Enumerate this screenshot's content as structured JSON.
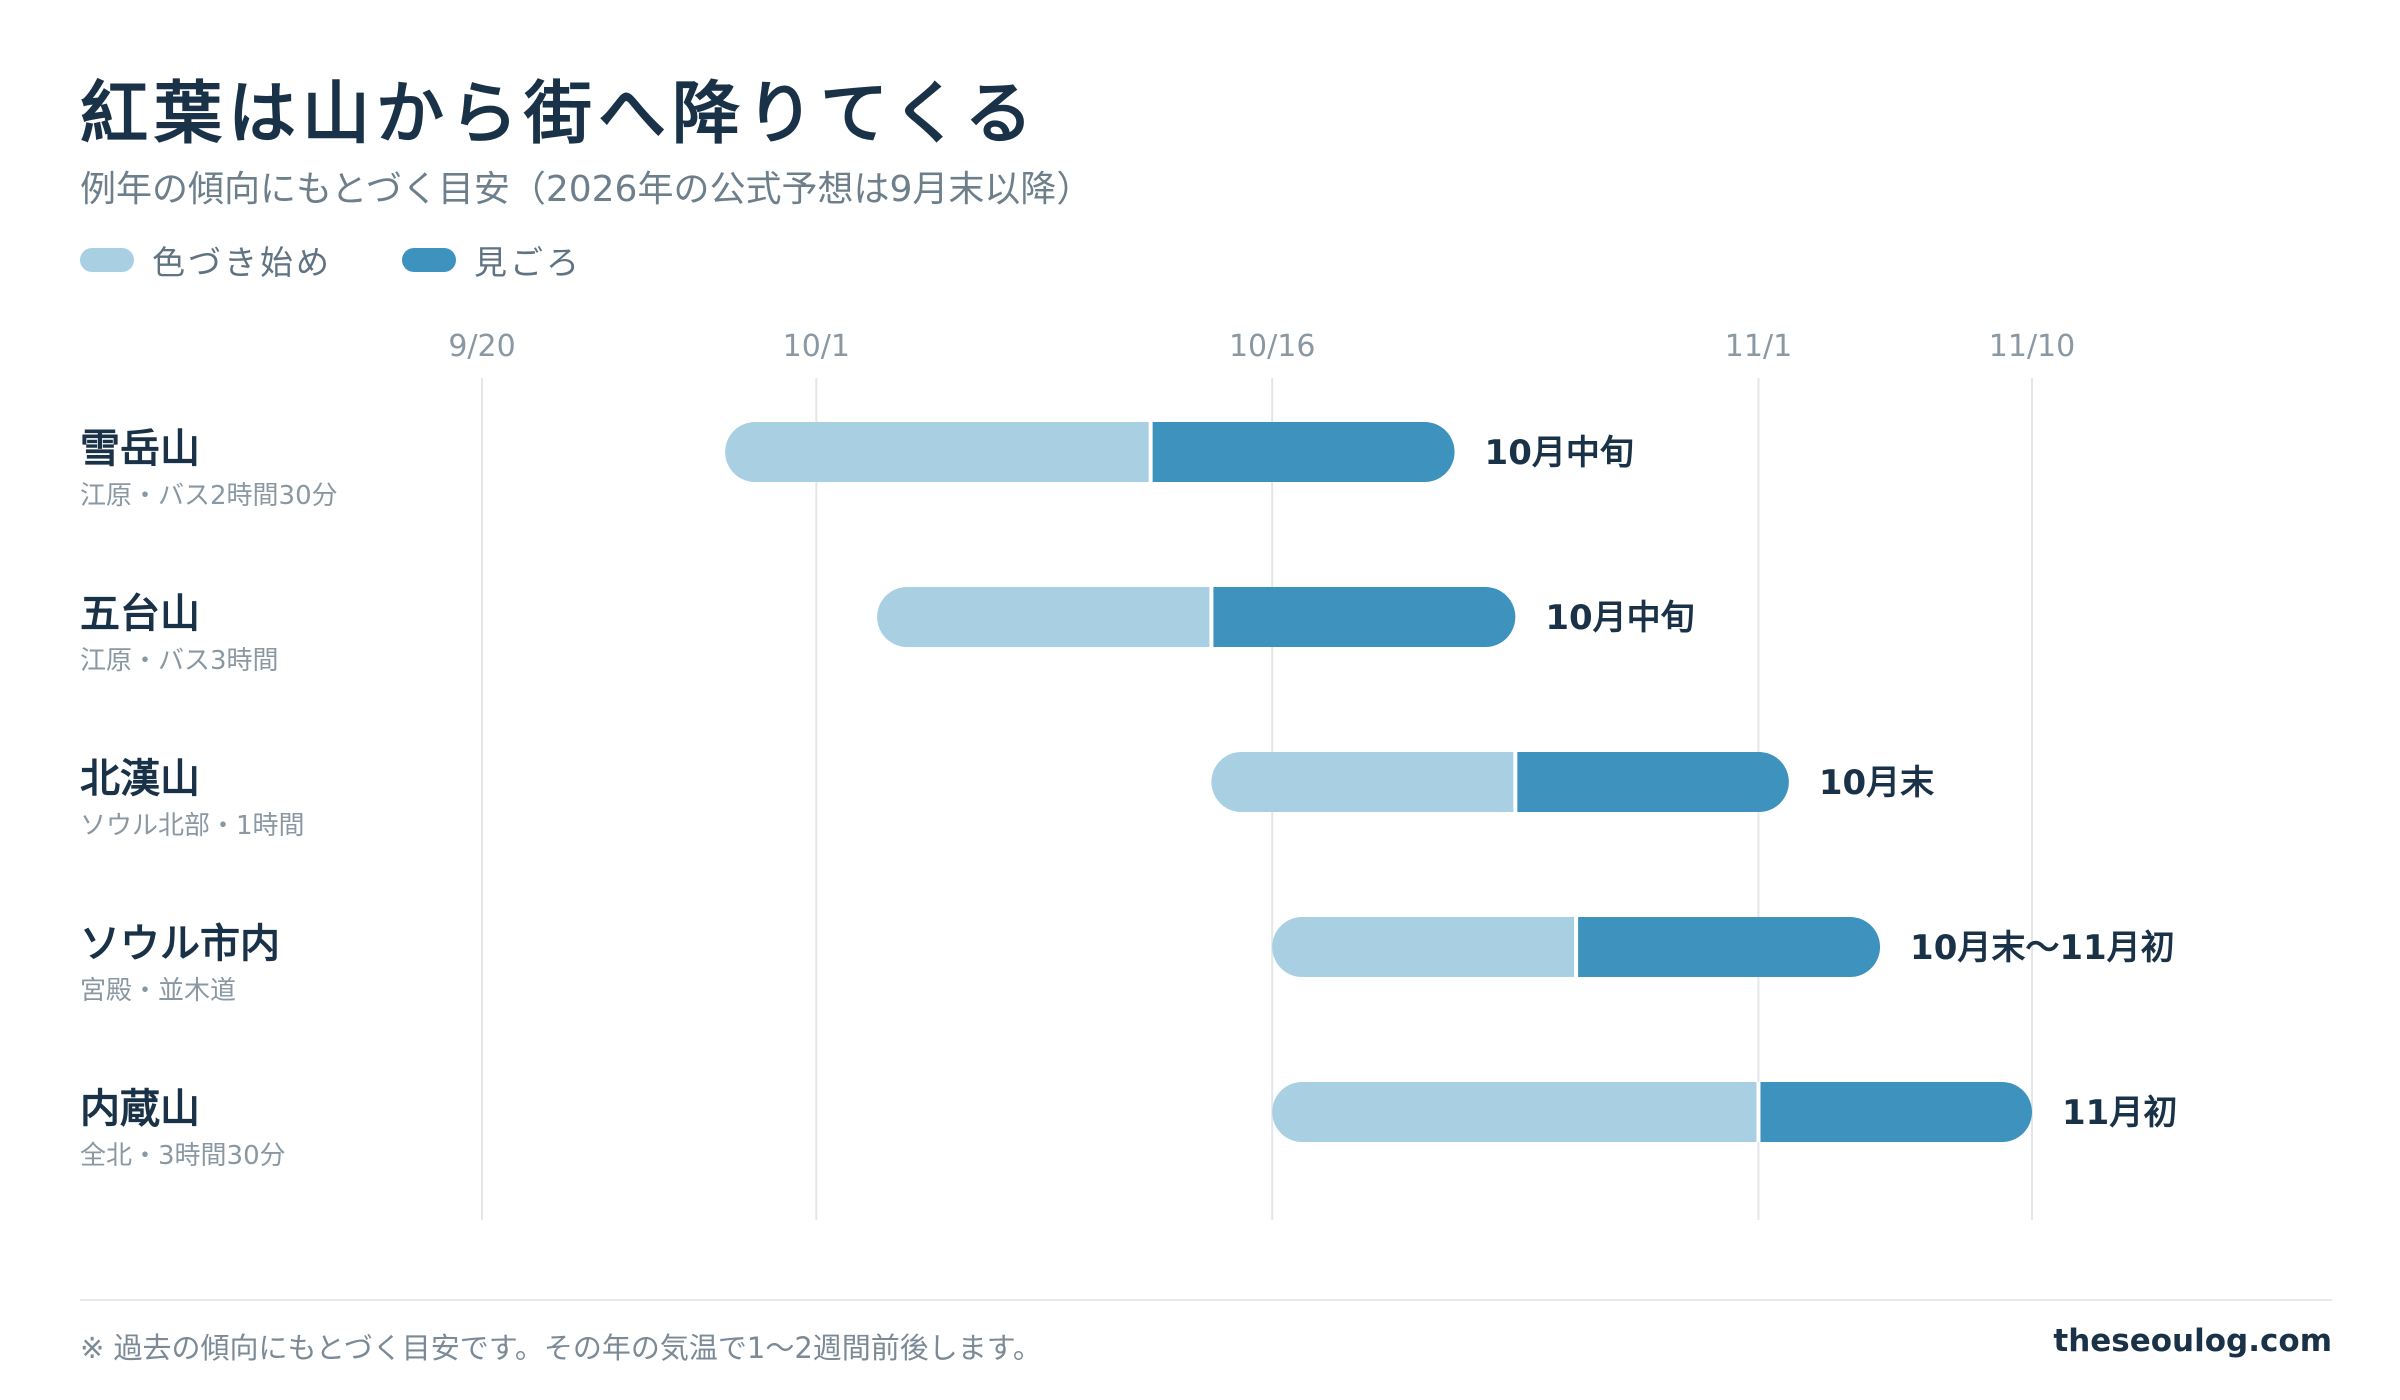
{
  "title": "紅葉は山から街へ降りてくる",
  "subtitle": "例年の傾向にもとづく目安（2026年の公式予想は9月末以降）",
  "legend": [
    {
      "label": "色づき始め",
      "color": "#a9cfe2"
    },
    {
      "label": "見ごろ",
      "color": "#3e92be"
    }
  ],
  "chart_data": {
    "type": "bar",
    "orientation": "horizontal-range",
    "x_ticks": [
      {
        "label": "9/20",
        "date": "2026-09-20"
      },
      {
        "label": "10/1",
        "date": "2026-10-01"
      },
      {
        "label": "10/16",
        "date": "2026-10-16"
      },
      {
        "label": "11/1",
        "date": "2026-11-01"
      },
      {
        "label": "11/10",
        "date": "2026-11-10"
      }
    ],
    "xlim": [
      "2026-09-20",
      "2026-11-10"
    ],
    "grid": true,
    "legend_position": "top-left",
    "rows": [
      {
        "name": "雪岳山",
        "sub": "江原・バス2時間30分",
        "color_start": "2026-09-28",
        "peak_start": "2026-10-12",
        "peak_end": "2026-10-22",
        "label": "10月中旬"
      },
      {
        "name": "五台山",
        "sub": "江原・バス3時間",
        "color_start": "2026-10-03",
        "peak_start": "2026-10-14",
        "peak_end": "2026-10-24",
        "label": "10月中旬"
      },
      {
        "name": "北漢山",
        "sub": "ソウル北部・1時間",
        "color_start": "2026-10-14",
        "peak_start": "2026-10-24",
        "peak_end": "2026-11-02",
        "label": "10月末"
      },
      {
        "name": "ソウル市内",
        "sub": "宮殿・並木道",
        "color_start": "2026-10-16",
        "peak_start": "2026-10-26",
        "peak_end": "2026-11-05",
        "label": "10月末〜11月初"
      },
      {
        "name": "内蔵山",
        "sub": "全北・3時間30分",
        "color_start": "2026-10-16",
        "peak_start": "2026-11-01",
        "peak_end": "2026-11-10",
        "label": "11月初"
      }
    ]
  },
  "footer": {
    "note": "※ 過去の傾向にもとづく目安です。その年の気温で1〜2週間前後します。",
    "site": "theseoulog.com"
  }
}
